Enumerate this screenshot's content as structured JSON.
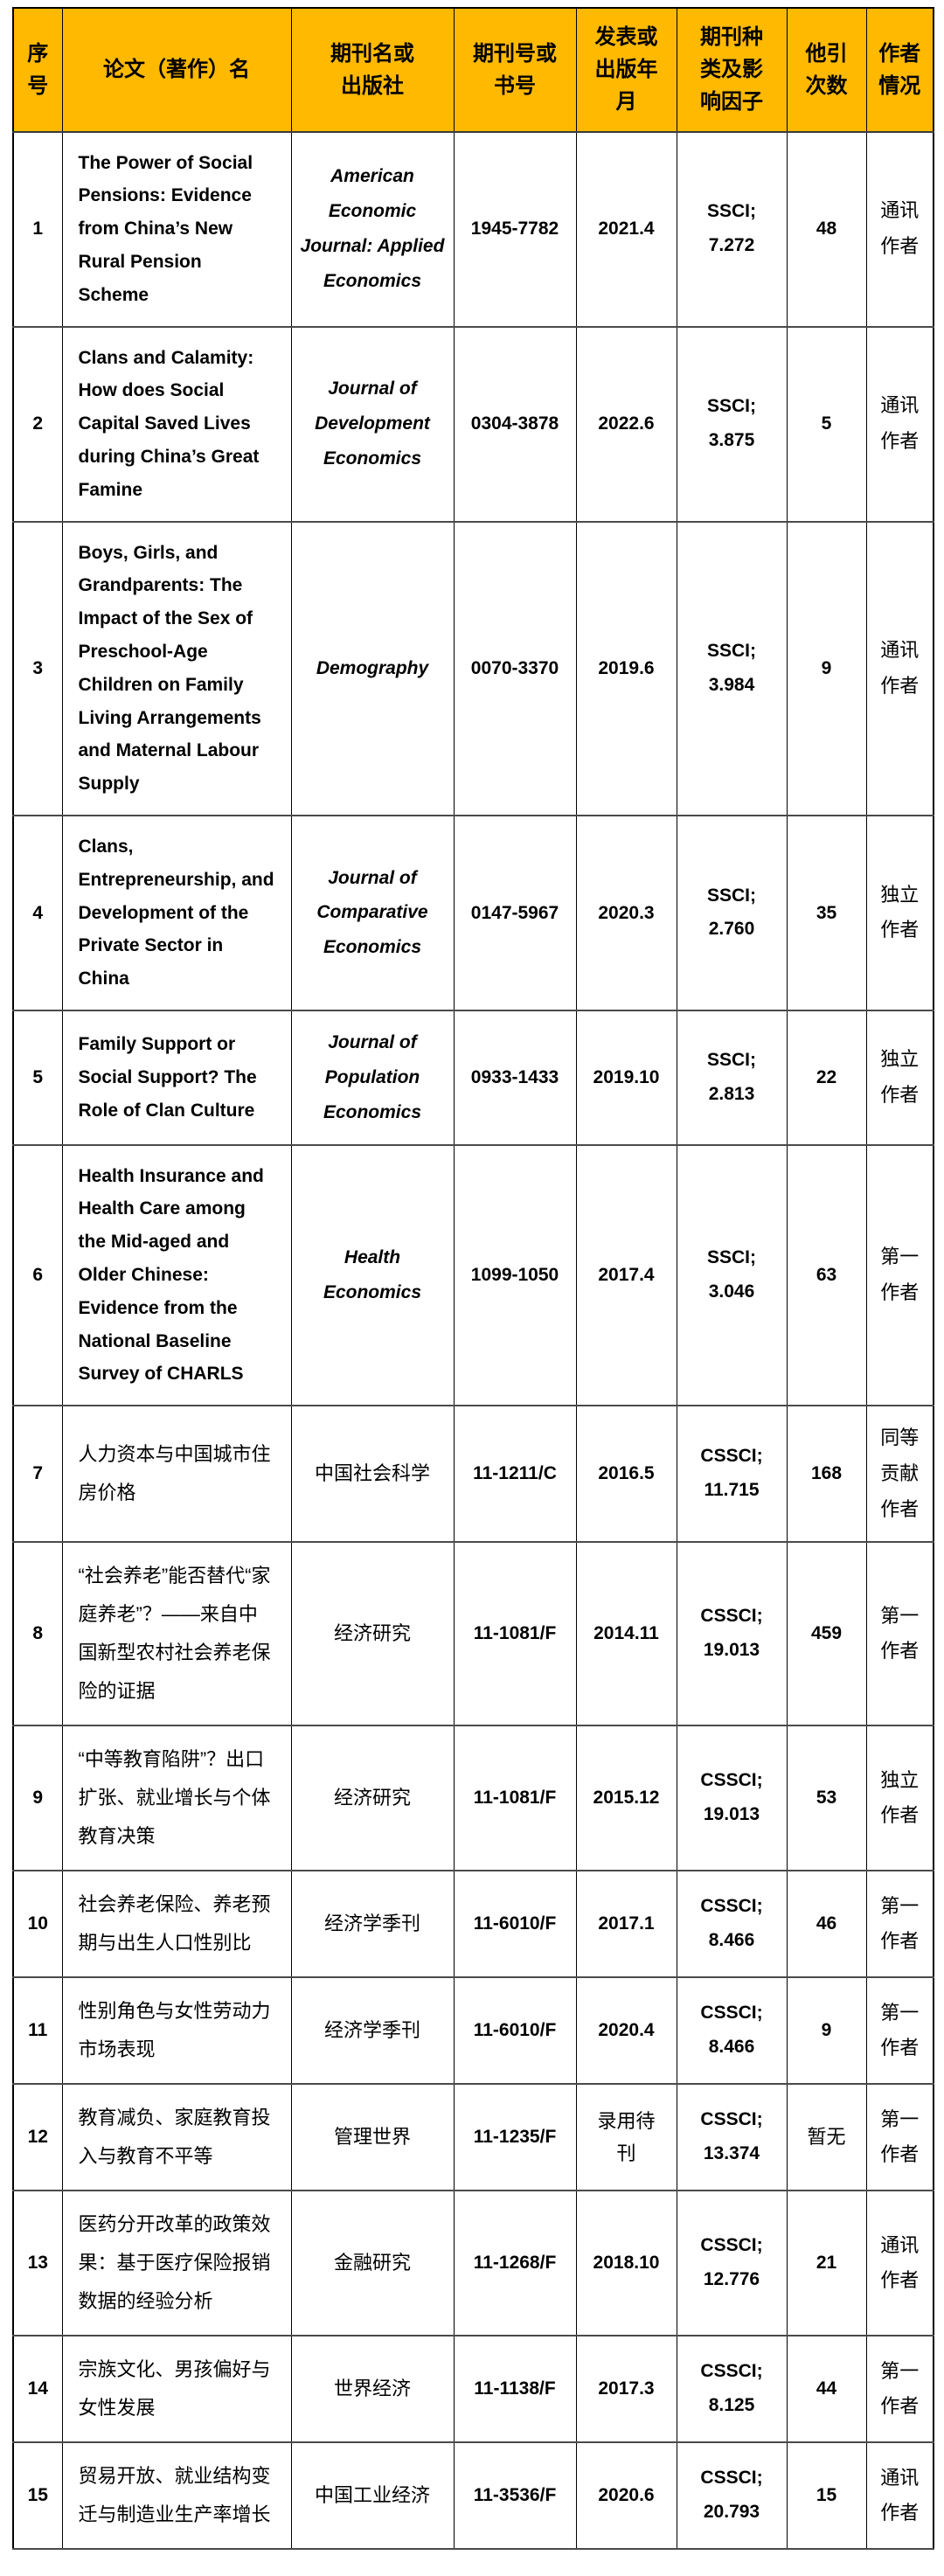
{
  "table": {
    "header": {
      "bg_color": "#FFB900",
      "cells": [
        "序号",
        "论文（著作）名",
        "期刊名或出版社",
        "期刊号或书号",
        "发表或出版年月",
        "期刊种类及影响因子",
        "他引次数",
        "作者情况"
      ]
    },
    "rows": [
      {
        "no": "1",
        "title": "The Power of Social Pensions: Evidence from China’s New Rural Pension Scheme",
        "lang": "latin",
        "journal": "American Economic Journal: Applied Economics",
        "journal_lang": "latin-italic",
        "issn": "1945-7782",
        "date": "2021.4",
        "type": "SSCI; 7.272",
        "citations": "48",
        "author": "通讯作者"
      },
      {
        "no": "2",
        "title": "Clans and Calamity: How does Social Capital Saved Lives during China’s Great Famine",
        "lang": "latin",
        "journal": "Journal of Development Economics",
        "journal_lang": "latin-italic",
        "issn": "0304-3878",
        "date": "2022.6",
        "type": "SSCI; 3.875",
        "citations": "5",
        "author": "通讯作者"
      },
      {
        "no": "3",
        "title": "Boys, Girls, and Grandparents: The Impact of the Sex of Preschool-Age Children on Family Living Arrangements and Maternal Labour Supply",
        "lang": "latin",
        "journal": "Demography",
        "journal_lang": "latin-italic",
        "issn": "0070-3370",
        "date": "2019.6",
        "type": "SSCI; 3.984",
        "citations": "9",
        "author": "通讯作者"
      },
      {
        "no": "4",
        "title": "Clans, Entrepreneurship, and Development of the Private Sector in China",
        "lang": "latin",
        "journal": "Journal of Comparative Economics",
        "journal_lang": "latin-italic",
        "issn": "0147-5967",
        "date": "2020.3",
        "type": "SSCI; 2.760",
        "citations": "35",
        "author": "独立作者"
      },
      {
        "no": "5",
        "title": "Family Support or Social Support? The Role of Clan Culture",
        "lang": "latin",
        "journal": "Journal of Population Economics",
        "journal_lang": "latin-italic",
        "issn": "0933-1433",
        "date": "2019.10",
        "type": "SSCI; 2.813",
        "citations": "22",
        "author": "独立作者"
      },
      {
        "no": "6",
        "title": "Health Insurance and Health Care among the Mid-aged and Older Chinese: Evidence from the National Baseline Survey of CHARLS",
        "lang": "latin",
        "journal": "Health Economics",
        "journal_lang": "latin-italic",
        "issn": "1099-1050",
        "date": "2017.4",
        "type": "SSCI; 3.046",
        "citations": "63",
        "author": "第一作者"
      },
      {
        "no": "7",
        "title": "人力资本与中国城市住房价格",
        "lang": "cjk",
        "journal": "中国社会科学",
        "journal_lang": "cjk",
        "issn": "11-1211/C",
        "date": "2016.5",
        "type": "CSSCI; 11.715",
        "citations": "168",
        "author": "同等贡献作者"
      },
      {
        "no": "8",
        "title": "“社会养老”能否替代“家庭养老”？——来自中国新型农村社会养老保险的证据",
        "lang": "cjk",
        "journal": "经济研究",
        "journal_lang": "cjk",
        "issn": "11-1081/F",
        "date": "2014.11",
        "type": "CSSCI; 19.013",
        "citations": "459",
        "author": "第一作者"
      },
      {
        "no": "9",
        "title": "“中等教育陷阱”？出口扩张、就业增长与个体教育决策",
        "lang": "cjk",
        "journal": "经济研究",
        "journal_lang": "cjk",
        "issn": "11-1081/F",
        "date": "2015.12",
        "type": "CSSCI; 19.013",
        "citations": "53",
        "author": "独立作者"
      },
      {
        "no": "10",
        "title": "社会养老保险、养老预期与出生人口性别比",
        "lang": "cjk",
        "journal": "经济学季刊",
        "journal_lang": "cjk",
        "issn": "11-6010/F",
        "date": "2017.1",
        "type": "CSSCI; 8.466",
        "citations": "46",
        "author": "第一作者"
      },
      {
        "no": "11",
        "title": "性别角色与女性劳动力市场表现",
        "lang": "cjk",
        "journal": "经济学季刊",
        "journal_lang": "cjk",
        "issn": "11-6010/F",
        "date": "2020.4",
        "type": "CSSCI; 8.466",
        "citations": "9",
        "author": "第一作者"
      },
      {
        "no": "12",
        "title": "教育减负、家庭教育投入与教育不平等",
        "lang": "cjk",
        "journal": "管理世界",
        "journal_lang": "cjk",
        "issn": "11-1235/F",
        "date": "录用待刊",
        "date_lang": "cjk-light",
        "type": "CSSCI; 13.374",
        "citations": "暂无",
        "citations_lang": "cjk-light",
        "author": "第一作者"
      },
      {
        "no": "13",
        "title": "医药分开改革的政策效果：基于医疗保险报销数据的经验分析",
        "lang": "cjk",
        "journal": "金融研究",
        "journal_lang": "cjk",
        "issn": "11-1268/F",
        "date": "2018.10",
        "type": "CSSCI; 12.776",
        "citations": "21",
        "author": "通讯作者"
      },
      {
        "no": "14",
        "title": "宗族文化、男孩偏好与女性发展",
        "lang": "cjk",
        "journal": "世界经济",
        "journal_lang": "cjk",
        "issn": "11-1138/F",
        "date": "2017.3",
        "type": "CSSCI; 8.125",
        "citations": "44",
        "author": "第一作者"
      },
      {
        "no": "15",
        "title": "贸易开放、就业结构变迁与制造业生产率增长",
        "lang": "cjk",
        "journal": "中国工业经济",
        "journal_lang": "cjk",
        "issn": "11-3536/F",
        "date": "2020.6",
        "type": "CSSCI; 20.793",
        "citations": "15",
        "author": "通讯作者"
      }
    ]
  }
}
